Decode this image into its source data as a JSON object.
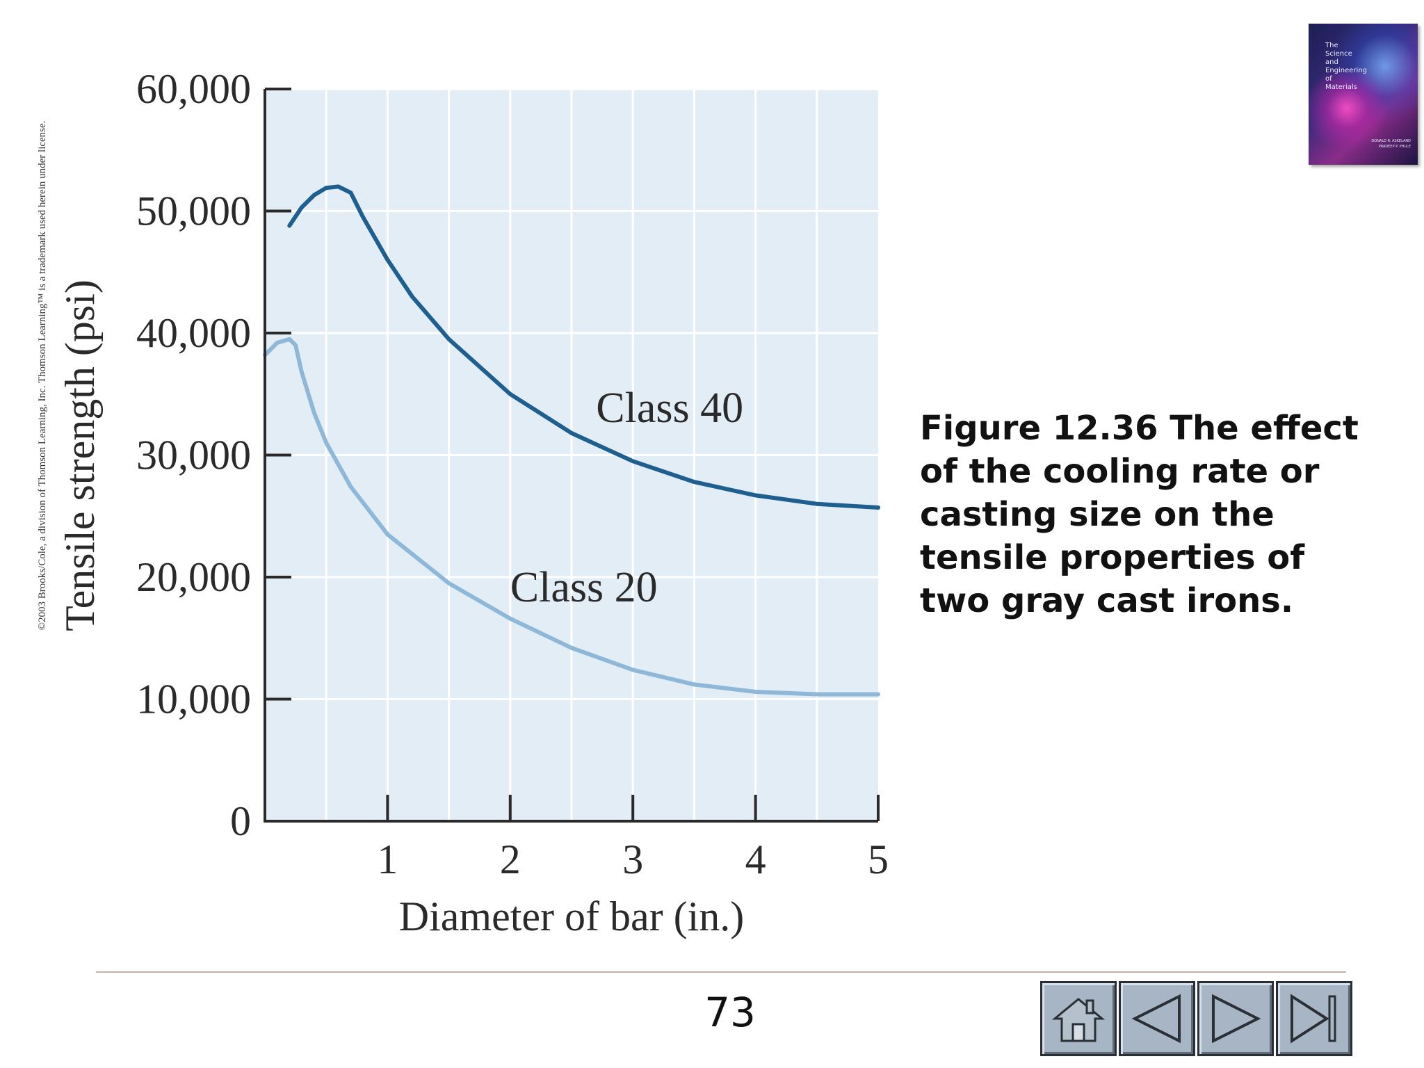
{
  "copyright": "©2003 Brooks/Cole, a division of Thomson Learning, Inc.  Thomson Learning™ is a trademark used herein under license.",
  "caption": "Figure 12.36  The effect of the cooling rate or casting size on the tensile properties of two gray cast irons.",
  "book_cover": {
    "title_lines": [
      "The",
      "Science",
      "and",
      "Engineering",
      "of",
      "Materials"
    ],
    "authors_line1": "DONALD R. ASKELAND",
    "authors_line2": "PRADEEP P. PHULE"
  },
  "page_number": "73",
  "nav": {
    "buttons": [
      {
        "name": "home-button",
        "icon": "home-icon"
      },
      {
        "name": "previous-button",
        "icon": "triangle-left-icon"
      },
      {
        "name": "next-button",
        "icon": "triangle-right-icon"
      },
      {
        "name": "last-button",
        "icon": "skip-end-icon"
      }
    ]
  },
  "colors": {
    "plot_bg": "#e3edf6",
    "grid": "#ffffff",
    "axis": "#2a2a2a",
    "class40": "#1f5f8f",
    "class20": "#8fb8d8"
  },
  "chart_data": {
    "type": "line",
    "xlabel": "Diameter of bar (in.)",
    "ylabel": "Tensile strength (psi)",
    "xlim": [
      0,
      5
    ],
    "ylim": [
      0,
      60000
    ],
    "x_ticks": [
      1,
      2,
      3,
      4,
      5
    ],
    "x_tick_labels": [
      "1",
      "2",
      "3",
      "4",
      "5"
    ],
    "y_ticks": [
      0,
      10000,
      20000,
      30000,
      40000,
      50000,
      60000
    ],
    "y_tick_labels": [
      "0",
      "10,000",
      "20,000",
      "30,000",
      "40,000",
      "50,000",
      "60,000"
    ],
    "grid": true,
    "series": [
      {
        "name": "Class 40",
        "x": [
          0.2,
          0.3,
          0.4,
          0.5,
          0.6,
          0.7,
          0.8,
          1.0,
          1.2,
          1.5,
          2.0,
          2.5,
          3.0,
          3.5,
          4.0,
          4.5,
          5.0
        ],
        "y": [
          48800,
          50300,
          51300,
          51900,
          52000,
          51500,
          49500,
          46000,
          43000,
          39500,
          35000,
          31800,
          29500,
          27800,
          26700,
          26000,
          25700
        ]
      },
      {
        "name": "Class 20",
        "x": [
          0.0,
          0.1,
          0.2,
          0.25,
          0.3,
          0.4,
          0.5,
          0.7,
          1.0,
          1.5,
          2.0,
          2.5,
          3.0,
          3.5,
          4.0,
          4.5,
          5.0
        ],
        "y": [
          38200,
          39200,
          39500,
          39000,
          36800,
          33500,
          31000,
          27400,
          23500,
          19500,
          16600,
          14200,
          12400,
          11200,
          10600,
          10400,
          10400
        ]
      }
    ]
  }
}
